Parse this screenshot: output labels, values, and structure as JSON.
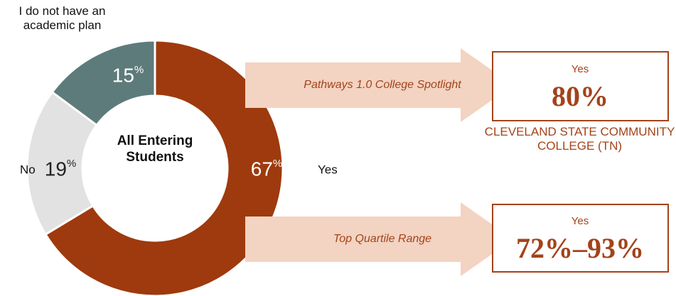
{
  "chart_data": {
    "type": "donut",
    "center_label": "All Entering Students",
    "categories": [
      "Yes",
      "No",
      "I do not have an academic plan"
    ],
    "values": [
      67,
      19,
      15
    ],
    "value_labels": [
      "67%",
      "19%",
      "15%"
    ],
    "colors": [
      "#9e3a0e",
      "#e2e2e2",
      "#5e7b7b"
    ],
    "annotations": [
      {
        "label": "Pathways 1.0 College Spotlight",
        "box_title": "Yes",
        "box_value": "80%",
        "caption": "CLEVELAND STATE COMMUNITY COLLEGE (TN)"
      },
      {
        "label": "Top Quartile Range",
        "box_title": "Yes",
        "box_value": "72%–93%"
      }
    ]
  }
}
